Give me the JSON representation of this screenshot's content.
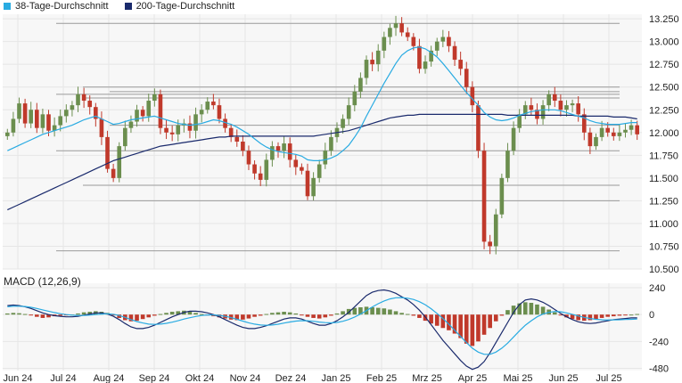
{
  "legend": {
    "items": [
      {
        "label": "38-Tage-Durchschnitt",
        "color": "#29abe2"
      },
      {
        "label": "200-Tage-Durchschnitt",
        "color": "#1a2a6c"
      }
    ]
  },
  "macd_title": "MACD (12,26,9)",
  "colors": {
    "up": "#6b8e4e",
    "down": "#c0392b",
    "ma38": "#29abe2",
    "ma200": "#1a2a6c",
    "macd_line": "#1a2a6c",
    "signal_line": "#29abe2",
    "grid": "#e6e6e6",
    "panel_bg": "#f7f7f7",
    "level": "#555555"
  },
  "chart_data": [
    {
      "type": "candlestick",
      "title": "",
      "x_labels": [
        "Jun 24",
        "Jul 24",
        "Aug 24",
        "Sep 24",
        "Okt 24",
        "Nov 24",
        "Dez 24",
        "Jan 25",
        "Feb 25",
        "Mrz 25",
        "Apr 25",
        "Mai 25",
        "Jun 25",
        "Jul 25"
      ],
      "y_ticks": [
        "13.250",
        "13.000",
        "12.750",
        "12.500",
        "12.250",
        "12.000",
        "11.750",
        "11.500",
        "11.250",
        "11.000",
        "10.750",
        "10.500"
      ],
      "ylim": [
        10500,
        13300
      ],
      "close_series": [
        12000,
        12150,
        12320,
        12100,
        12250,
        12050,
        12200,
        12020,
        12080,
        12180,
        12250,
        12300,
        12420,
        12350,
        12280,
        12150,
        11950,
        11600,
        11500,
        11850,
        12050,
        12120,
        12250,
        12180,
        12350,
        12420,
        12050,
        12000,
        11980,
        12080,
        12100,
        12020,
        12200,
        12250,
        12340,
        12300,
        12150,
        12050,
        11950,
        11900,
        11800,
        11650,
        11550,
        11480,
        11700,
        11850,
        11800,
        11880,
        11700,
        11620,
        11580,
        11300,
        11500,
        11650,
        11800,
        11950,
        12050,
        12150,
        12300,
        12450,
        12600,
        12800,
        12750,
        12900,
        13050,
        13150,
        13200,
        13100,
        13050,
        12950,
        12700,
        12780,
        12900,
        13000,
        13050,
        12950,
        12800,
        12700,
        12500,
        12300,
        11800,
        10800,
        10750,
        11100,
        11500,
        11800,
        12050,
        12200,
        12300,
        12250,
        12150,
        12300,
        12420,
        12350,
        12250,
        12300,
        12320,
        12200,
        12000,
        11850,
        11950,
        12050,
        12000,
        11960,
        12000,
        12030,
        12080,
        11980
      ],
      "ma38": [
        11800,
        11830,
        11860,
        11890,
        11920,
        11950,
        11980,
        12000,
        12020,
        12040,
        12060,
        12080,
        12110,
        12140,
        12160,
        12180,
        12150,
        12120,
        12090,
        12100,
        12120,
        12140,
        12150,
        12160,
        12170,
        12180,
        12160,
        12140,
        12120,
        12100,
        12090,
        12080,
        12090,
        12100,
        12120,
        12140,
        12130,
        12110,
        12090,
        12060,
        12020,
        11980,
        11930,
        11880,
        11840,
        11810,
        11790,
        11780,
        11770,
        11760,
        11740,
        11700,
        11690,
        11690,
        11700,
        11720,
        11750,
        11800,
        11860,
        11950,
        12050,
        12180,
        12300,
        12420,
        12540,
        12650,
        12760,
        12850,
        12900,
        12930,
        12940,
        12920,
        12880,
        12830,
        12760,
        12680,
        12600,
        12520,
        12440,
        12370,
        12300,
        12220,
        12170,
        12140,
        12130,
        12140,
        12160,
        12190,
        12210,
        12230,
        12240,
        12250,
        12250,
        12250,
        12240,
        12220,
        12200,
        12180,
        12160,
        12130,
        12110,
        12100,
        12090,
        12090,
        12090,
        12100,
        12110,
        12110
      ],
      "ma200": [
        11150,
        11180,
        11210,
        11240,
        11270,
        11300,
        11330,
        11360,
        11390,
        11420,
        11450,
        11480,
        11510,
        11540,
        11570,
        11600,
        11630,
        11660,
        11690,
        11710,
        11730,
        11750,
        11770,
        11790,
        11810,
        11830,
        11850,
        11860,
        11870,
        11880,
        11890,
        11900,
        11910,
        11920,
        11930,
        11940,
        11950,
        11950,
        11960,
        11960,
        11960,
        11960,
        11960,
        11960,
        11960,
        11960,
        11960,
        11960,
        11960,
        11960,
        11960,
        11960,
        11960,
        11970,
        11980,
        11990,
        12000,
        12010,
        12020,
        12040,
        12060,
        12080,
        12100,
        12120,
        12140,
        12160,
        12170,
        12180,
        12190,
        12190,
        12200,
        12200,
        12200,
        12200,
        12200,
        12200,
        12200,
        12200,
        12200,
        12200,
        12200,
        12200,
        12200,
        12200,
        12200,
        12190,
        12190,
        12190,
        12190,
        12190,
        12190,
        12190,
        12190,
        12190,
        12190,
        12190,
        12190,
        12180,
        12180,
        12180,
        12180,
        12180,
        12180,
        12170,
        12170,
        12170,
        12160,
        12150
      ],
      "levels": [
        13200,
        12500,
        12450,
        12420,
        12380,
        12080,
        11800,
        11420,
        11250,
        10700
      ]
    },
    {
      "type": "bar",
      "title": "MACD (12,26,9)",
      "y_ticks": [
        "240",
        "0",
        "-240",
        "-480"
      ],
      "ylim": [
        -500,
        280
      ],
      "histogram": [
        10,
        15,
        12,
        5,
        -5,
        -20,
        -30,
        -25,
        -15,
        -10,
        -5,
        0,
        10,
        20,
        25,
        30,
        25,
        15,
        -5,
        -30,
        -50,
        -60,
        -55,
        -40,
        -25,
        -10,
        5,
        15,
        25,
        30,
        35,
        25,
        15,
        5,
        -5,
        -15,
        -25,
        -35,
        -45,
        -50,
        -45,
        -35,
        -20,
        -10,
        5,
        15,
        20,
        25,
        20,
        10,
        -5,
        -20,
        -30,
        -35,
        -25,
        -10,
        10,
        30,
        50,
        60,
        65,
        70,
        65,
        60,
        55,
        45,
        30,
        15,
        5,
        -10,
        -30,
        -55,
        -80,
        -100,
        -120,
        -140,
        -170,
        -210,
        -260,
        -280,
        -240,
        -180,
        -120,
        -60,
        -10,
        40,
        80,
        100,
        110,
        105,
        90,
        70,
        45,
        20,
        -5,
        -25,
        -40,
        -50,
        -55,
        -50,
        -40,
        -30,
        -20,
        -15,
        -10,
        -5,
        0,
        5
      ],
      "macd": [
        80,
        85,
        80,
        70,
        55,
        35,
        15,
        0,
        -10,
        -15,
        -20,
        -20,
        -15,
        -5,
        5,
        15,
        15,
        5,
        -15,
        -45,
        -80,
        -110,
        -125,
        -125,
        -115,
        -95,
        -70,
        -45,
        -20,
        0,
        20,
        30,
        30,
        25,
        15,
        0,
        -20,
        -45,
        -70,
        -95,
        -115,
        -125,
        -125,
        -115,
        -100,
        -80,
        -60,
        -40,
        -30,
        -30,
        -40,
        -60,
        -80,
        -95,
        -95,
        -80,
        -55,
        -20,
        20,
        70,
        120,
        170,
        200,
        215,
        220,
        210,
        190,
        160,
        130,
        90,
        40,
        -20,
        -90,
        -160,
        -230,
        -290,
        -350,
        -410,
        -460,
        -490,
        -470,
        -420,
        -340,
        -250,
        -160,
        -70,
        20,
        90,
        130,
        140,
        130,
        110,
        80,
        45,
        10,
        -20,
        -45,
        -65,
        -75,
        -80,
        -75,
        -65,
        -55,
        -45,
        -40,
        -35,
        -30,
        -30
      ],
      "signal": [
        70,
        75,
        75,
        72,
        65,
        55,
        42,
        30,
        18,
        8,
        0,
        -5,
        -8,
        -8,
        -5,
        0,
        5,
        7,
        3,
        -8,
        -25,
        -45,
        -62,
        -75,
        -85,
        -88,
        -85,
        -78,
        -68,
        -55,
        -40,
        -28,
        -17,
        -8,
        -3,
        -3,
        -7,
        -15,
        -27,
        -42,
        -58,
        -73,
        -85,
        -93,
        -96,
        -93,
        -86,
        -76,
        -66,
        -58,
        -54,
        -55,
        -60,
        -67,
        -72,
        -74,
        -70,
        -60,
        -44,
        -22,
        5,
        35,
        68,
        97,
        122,
        140,
        150,
        152,
        146,
        135,
        115,
        88,
        52,
        10,
        -35,
        -85,
        -140,
        -195,
        -250,
        -300,
        -335,
        -355,
        -355,
        -335,
        -300,
        -255,
        -200,
        -145,
        -95,
        -55,
        -20,
        5,
        20,
        28,
        25,
        15,
        2,
        -12,
        -25,
        -35,
        -42,
        -46,
        -48,
        -47,
        -46,
        -44,
        -42,
        -40
      ]
    }
  ]
}
